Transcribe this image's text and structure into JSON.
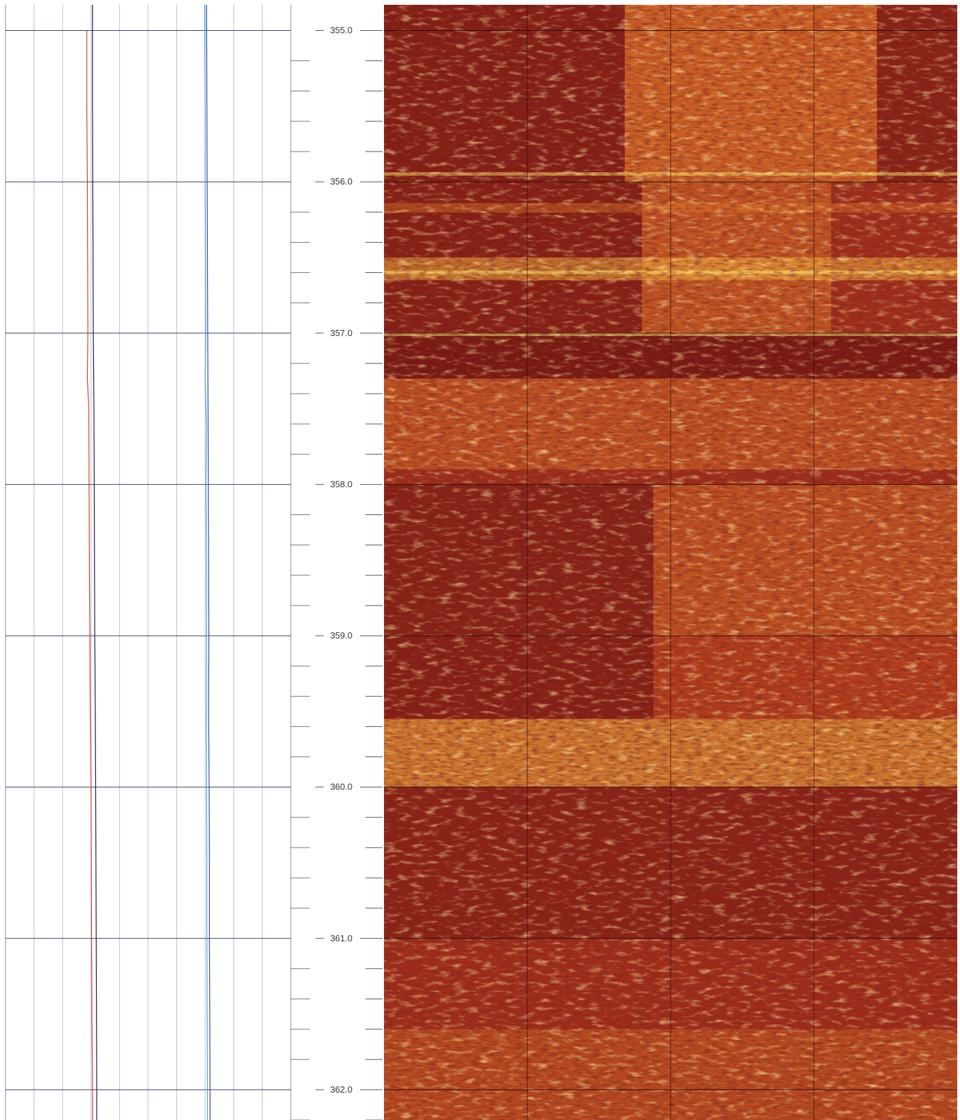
{
  "chart_data": {
    "type": "line",
    "title": "",
    "xlabel": "",
    "ylabel": "",
    "depth_range": [
      354.83,
      362.2
    ],
    "depth_major_ticks": [
      "355.0",
      "356.0",
      "357.0",
      "358.0",
      "359.0",
      "360.0",
      "361.0",
      "362.0"
    ],
    "depth_minor_step": 0.2,
    "grid": true,
    "left_track": {
      "grid_vertical_lines": 10,
      "x_range": [
        0,
        10
      ],
      "series": [
        {
          "color": "#e03b2c",
          "points": [
            [
              355.0,
              2.85
            ],
            [
              355.5,
              2.85
            ],
            [
              356.0,
              2.87
            ],
            [
              356.5,
              2.88
            ],
            [
              357.0,
              2.89
            ],
            [
              357.3,
              2.87
            ],
            [
              357.5,
              2.92
            ],
            [
              358.0,
              2.93
            ],
            [
              358.5,
              2.94
            ],
            [
              359.0,
              2.96
            ],
            [
              359.5,
              2.97
            ],
            [
              360.0,
              3.0
            ],
            [
              360.5,
              3.01
            ],
            [
              361.0,
              3.02
            ],
            [
              361.5,
              3.03
            ],
            [
              362.0,
              3.05
            ],
            [
              362.2,
              3.05
            ]
          ]
        },
        {
          "color": "#1a1a4a",
          "points": [
            [
              354.83,
              3.05
            ],
            [
              355.5,
              3.05
            ],
            [
              356.0,
              3.06
            ],
            [
              356.5,
              3.07
            ],
            [
              357.0,
              3.08
            ],
            [
              357.5,
              3.1
            ],
            [
              358.0,
              3.11
            ],
            [
              358.5,
              3.12
            ],
            [
              359.0,
              3.13
            ],
            [
              359.5,
              3.15
            ],
            [
              360.0,
              3.16
            ],
            [
              360.5,
              3.17
            ],
            [
              361.0,
              3.18
            ],
            [
              361.5,
              3.19
            ],
            [
              362.0,
              3.2
            ],
            [
              362.2,
              3.2
            ]
          ]
        },
        {
          "color": "#4aa3d8",
          "points": [
            [
              354.83,
              6.98
            ],
            [
              355.5,
              7.0
            ],
            [
              356.0,
              7.0
            ],
            [
              356.5,
              7.01
            ],
            [
              357.0,
              7.02
            ],
            [
              357.3,
              7.0
            ],
            [
              357.6,
              7.04
            ],
            [
              358.0,
              7.03
            ],
            [
              358.5,
              7.04
            ],
            [
              359.0,
              7.05
            ],
            [
              359.5,
              7.04
            ],
            [
              360.0,
              7.05
            ],
            [
              360.5,
              7.06
            ],
            [
              361.0,
              7.06
            ],
            [
              361.5,
              7.07
            ],
            [
              362.0,
              7.08
            ],
            [
              362.2,
              7.08
            ]
          ]
        },
        {
          "color": "#2e4d9e",
          "points": [
            [
              354.83,
              7.05
            ],
            [
              355.5,
              7.06
            ],
            [
              356.0,
              7.07
            ],
            [
              356.5,
              7.08
            ],
            [
              357.0,
              7.09
            ],
            [
              357.5,
              7.1
            ],
            [
              358.0,
              7.11
            ],
            [
              358.5,
              7.12
            ],
            [
              359.0,
              7.13
            ],
            [
              359.5,
              7.12
            ],
            [
              360.0,
              7.14
            ],
            [
              360.5,
              7.15
            ],
            [
              361.0,
              7.15
            ],
            [
              361.5,
              7.16
            ],
            [
              362.0,
              7.17
            ],
            [
              362.2,
              7.17
            ]
          ]
        }
      ]
    },
    "image_track": {
      "type": "heatmap",
      "colormap": [
        "#5a0a0c",
        "#7a1a14",
        "#9e2e1a",
        "#c44a1e",
        "#e07a2a",
        "#f2b23e",
        "#fbe76a",
        "#fffbb0"
      ],
      "columns": 4
    }
  }
}
